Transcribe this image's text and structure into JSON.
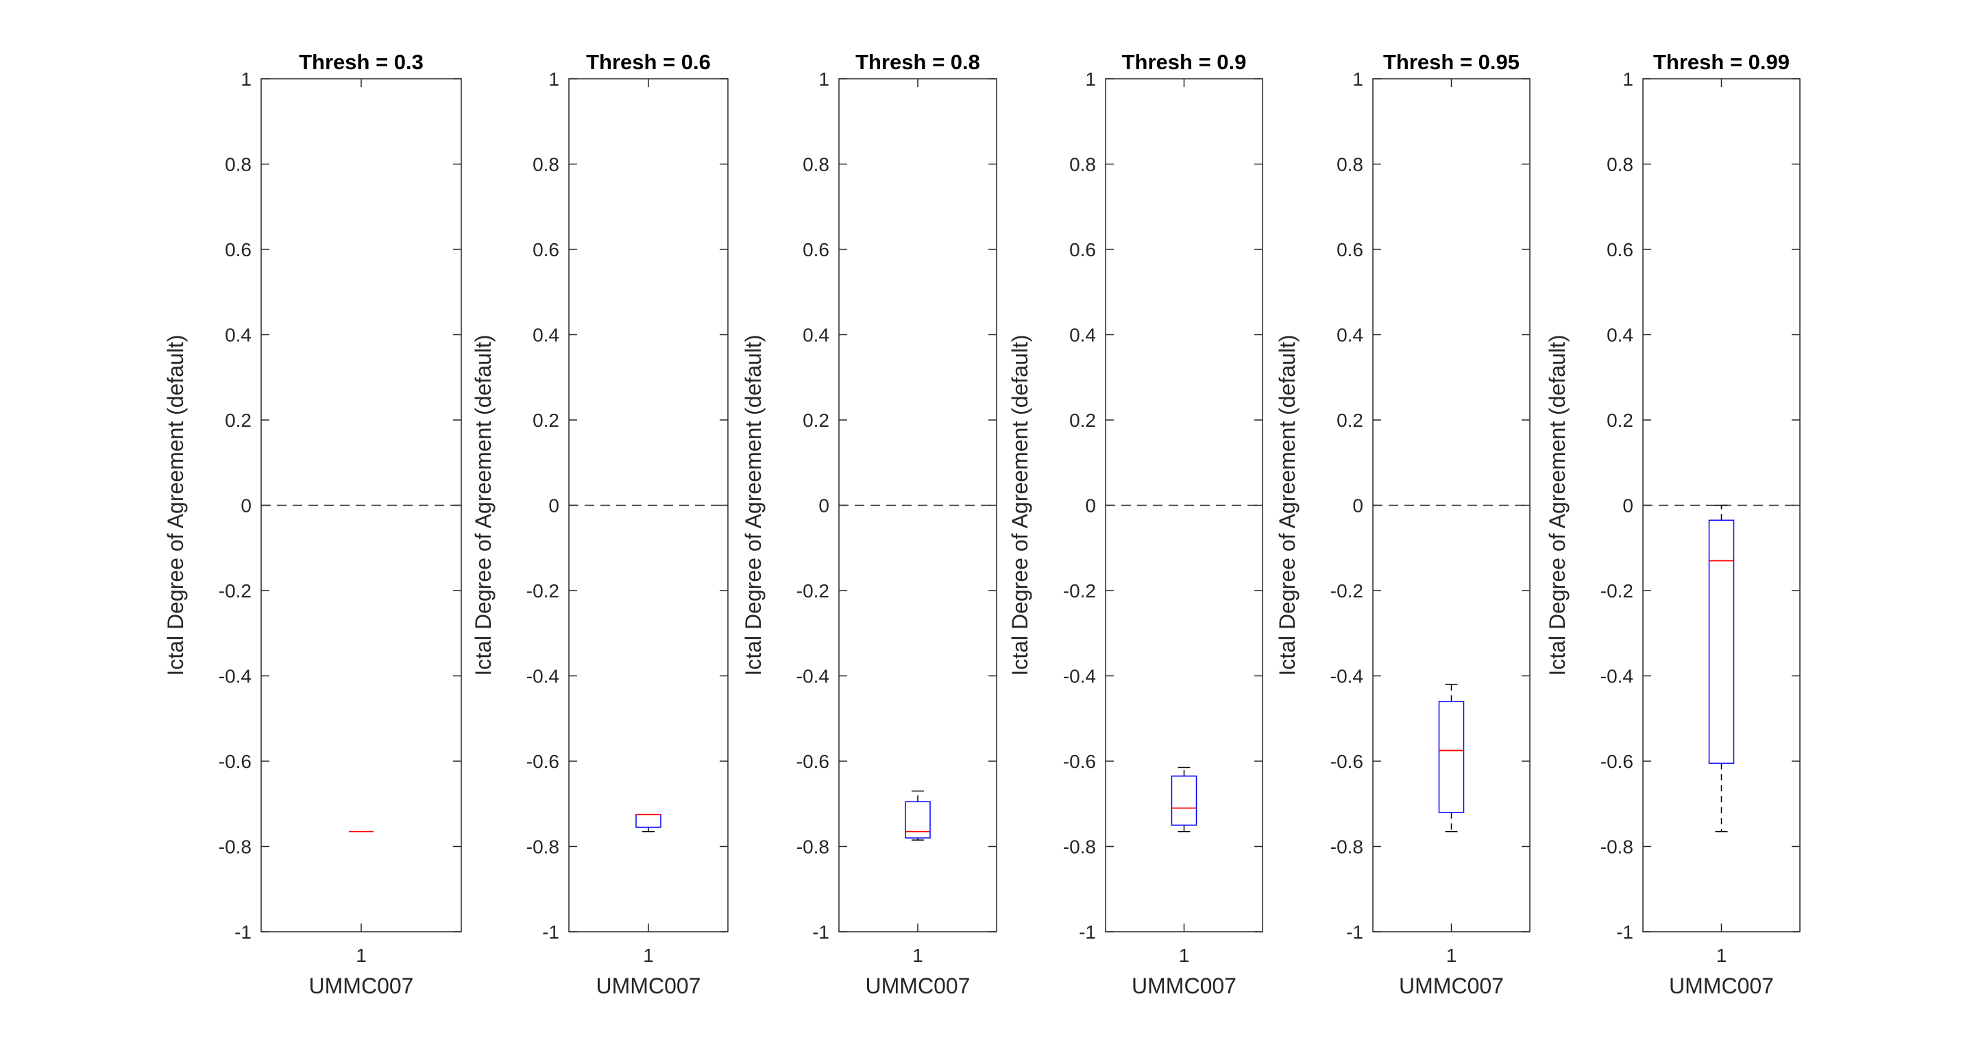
{
  "chart_data": [
    {
      "type": "box",
      "title": "Thresh = 0.3",
      "xticks": [
        "1"
      ],
      "xlabel": "UMMC007",
      "ylabel": "Ictal Degree of Agreement (default)",
      "ylim": [
        -1,
        1
      ],
      "yticks": [
        "-1",
        "-0.8",
        "-0.6",
        "-0.4",
        "-0.2",
        "0",
        "0.2",
        "0.4",
        "0.6",
        "0.8",
        "1"
      ],
      "reference_line": 0,
      "box": {
        "whisker_low": -0.765,
        "q1": -0.765,
        "median": -0.765,
        "q3": -0.765,
        "whisker_high": -0.765
      }
    },
    {
      "type": "box",
      "title": "Thresh = 0.6",
      "xticks": [
        "1"
      ],
      "xlabel": "UMMC007",
      "ylabel": "Ictal Degree of Agreement (default)",
      "ylim": [
        -1,
        1
      ],
      "yticks": [
        "-1",
        "-0.8",
        "-0.6",
        "-0.4",
        "-0.2",
        "0",
        "0.2",
        "0.4",
        "0.6",
        "0.8",
        "1"
      ],
      "reference_line": 0,
      "box": {
        "whisker_low": -0.765,
        "q1": -0.755,
        "median": -0.725,
        "q3": -0.725,
        "whisker_high": -0.725
      }
    },
    {
      "type": "box",
      "title": "Thresh = 0.8",
      "xticks": [
        "1"
      ],
      "xlabel": "UMMC007",
      "ylabel": "Ictal Degree of Agreement (default)",
      "ylim": [
        -1,
        1
      ],
      "yticks": [
        "-1",
        "-0.8",
        "-0.6",
        "-0.4",
        "-0.2",
        "0",
        "0.2",
        "0.4",
        "0.6",
        "0.8",
        "1"
      ],
      "reference_line": 0,
      "box": {
        "whisker_low": -0.785,
        "q1": -0.78,
        "median": -0.765,
        "q3": -0.695,
        "whisker_high": -0.67
      }
    },
    {
      "type": "box",
      "title": "Thresh = 0.9",
      "xticks": [
        "1"
      ],
      "xlabel": "UMMC007",
      "ylabel": "Ictal Degree of Agreement (default)",
      "ylim": [
        -1,
        1
      ],
      "yticks": [
        "-1",
        "-0.8",
        "-0.6",
        "-0.4",
        "-0.2",
        "0",
        "0.2",
        "0.4",
        "0.6",
        "0.8",
        "1"
      ],
      "reference_line": 0,
      "box": {
        "whisker_low": -0.765,
        "q1": -0.75,
        "median": -0.71,
        "q3": -0.635,
        "whisker_high": -0.615
      }
    },
    {
      "type": "box",
      "title": "Thresh = 0.95",
      "xticks": [
        "1"
      ],
      "xlabel": "UMMC007",
      "ylabel": "Ictal Degree of Agreement (default)",
      "ylim": [
        -1,
        1
      ],
      "yticks": [
        "-1",
        "-0.8",
        "-0.6",
        "-0.4",
        "-0.2",
        "0",
        "0.2",
        "0.4",
        "0.6",
        "0.8",
        "1"
      ],
      "reference_line": 0,
      "box": {
        "whisker_low": -0.765,
        "q1": -0.72,
        "median": -0.575,
        "q3": -0.46,
        "whisker_high": -0.42
      }
    },
    {
      "type": "box",
      "title": "Thresh = 0.99",
      "xticks": [
        "1"
      ],
      "xlabel": "UMMC007",
      "ylabel": "Ictal Degree of Agreement (default)",
      "ylim": [
        -1,
        1
      ],
      "yticks": [
        "-1",
        "-0.8",
        "-0.6",
        "-0.4",
        "-0.2",
        "0",
        "0.2",
        "0.4",
        "0.6",
        "0.8",
        "1"
      ],
      "reference_line": 0,
      "box": {
        "whisker_low": -0.765,
        "q1": -0.605,
        "median": -0.13,
        "q3": -0.035,
        "whisker_high": 0
      }
    }
  ],
  "colors": {
    "box_edge": "#0000ff",
    "median": "#ff0000",
    "whisker": "#000000",
    "reference_line": "#262626",
    "axes": "#262626"
  }
}
